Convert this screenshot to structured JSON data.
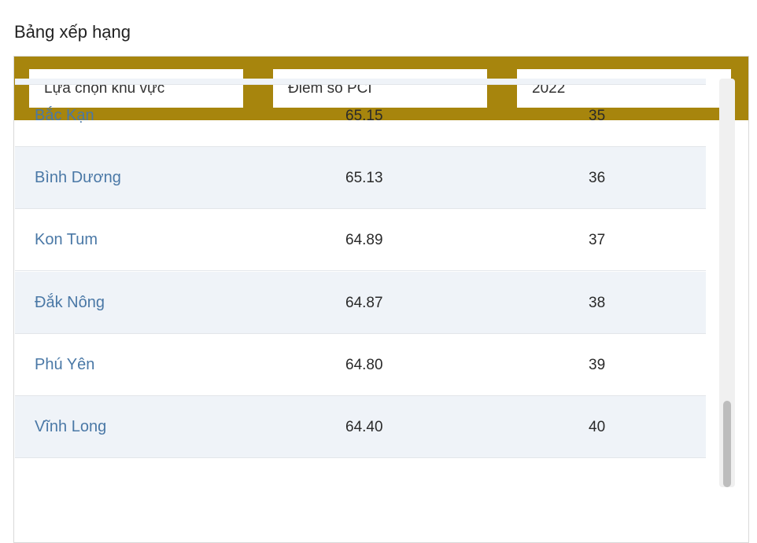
{
  "page_title": "Bảng xếp hạng",
  "filters": {
    "region": "Lựa chọn khu vực",
    "metric": "Điểm số PCI",
    "year": "2022"
  },
  "rows": [
    {
      "name": "Bắc Kạn",
      "score": "65.15",
      "rank": "35"
    },
    {
      "name": "Bình Dương",
      "score": "65.13",
      "rank": "36"
    },
    {
      "name": "Kon Tum",
      "score": "64.89",
      "rank": "37"
    },
    {
      "name": "Đắk Nông",
      "score": "64.87",
      "rank": "38"
    },
    {
      "name": "Phú Yên",
      "score": "64.80",
      "rank": "39"
    },
    {
      "name": "Vĩnh Long",
      "score": "64.40",
      "rank": "40"
    }
  ],
  "colors": {
    "filter_bar": "#a7850d",
    "row_alt": "#eff3f8",
    "link_text": "#4a78a6"
  }
}
